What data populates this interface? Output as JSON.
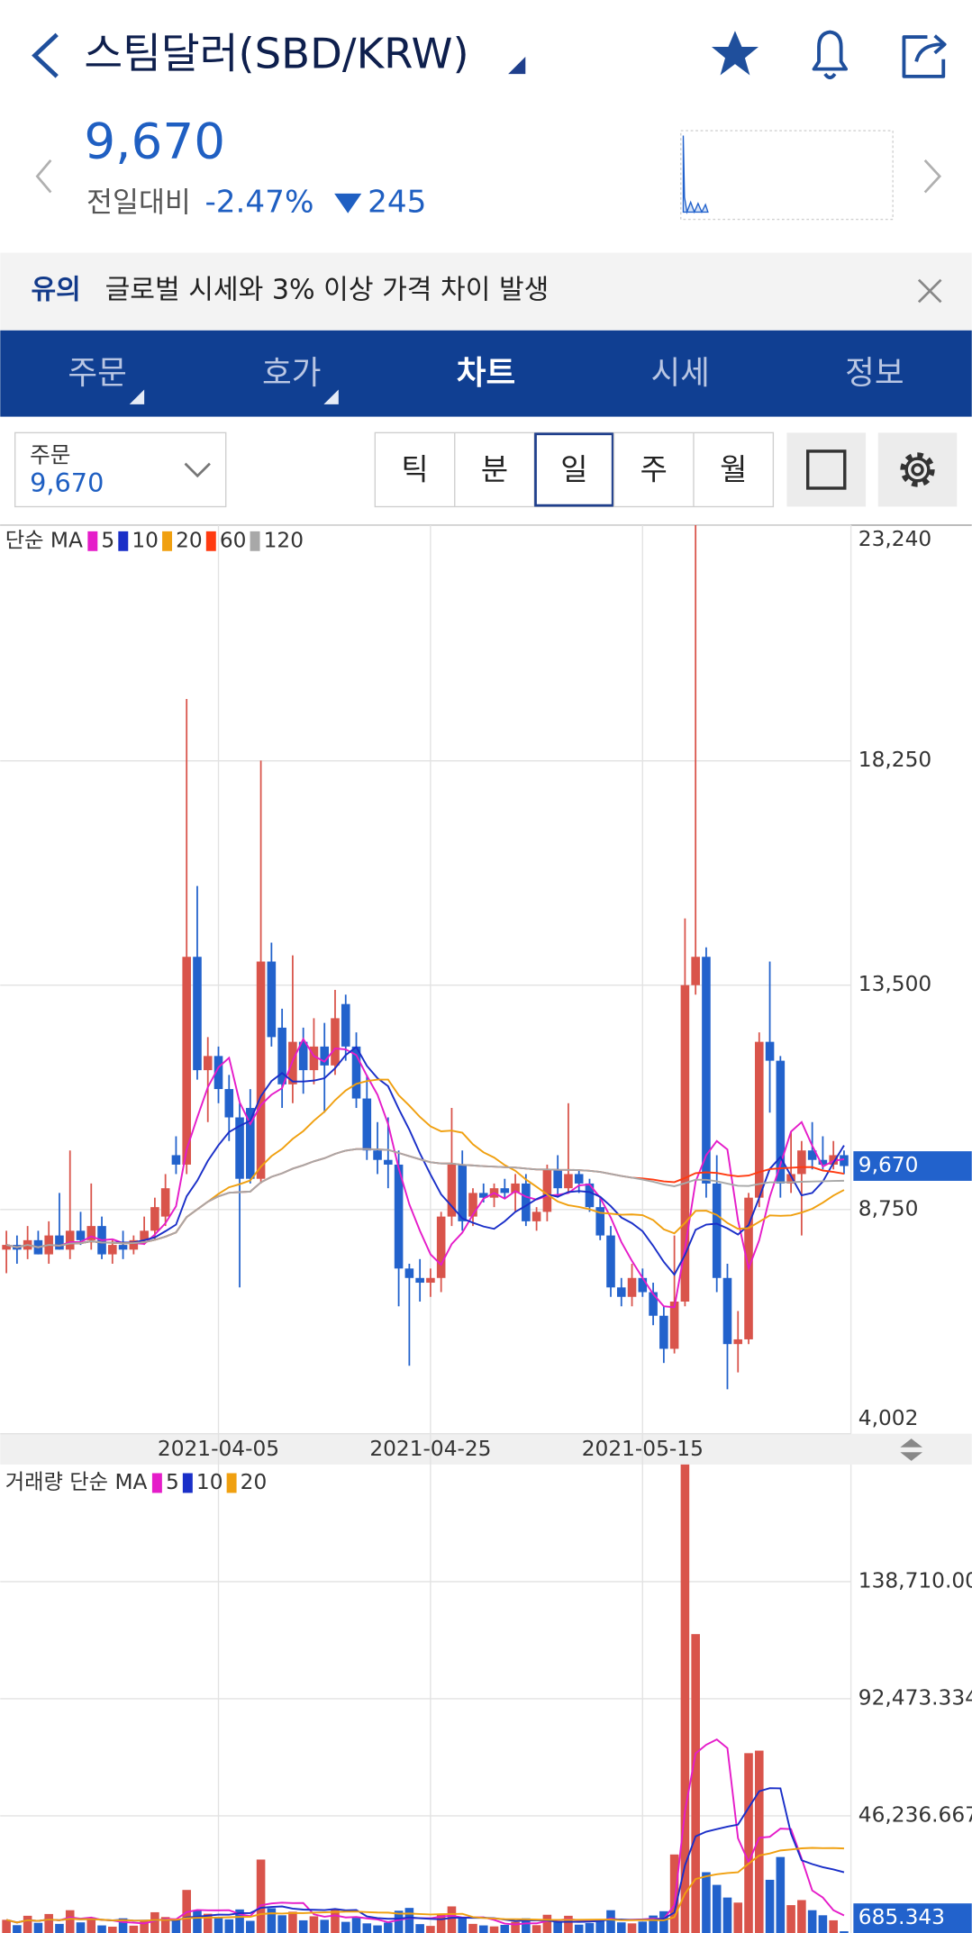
{
  "header": {
    "title": "스팀달러(SBD/KRW)"
  },
  "price": {
    "current": "9,670",
    "change_label": "전일대비",
    "change_pct": "-2.47%",
    "change_amount": "245"
  },
  "notice": {
    "tag": "유의",
    "text": "글로벌 시세와 3% 이상 가격 차이 발생"
  },
  "tabs": [
    "주문",
    "호가",
    "차트",
    "시세",
    "정보"
  ],
  "active_tab": 2,
  "controls": {
    "order_label": "주문",
    "order_price": "9,670",
    "periods": [
      "틱",
      "분",
      "일",
      "주",
      "월"
    ],
    "active_period": 2
  },
  "chart_data": [
    {
      "type": "candlestick",
      "legend_title": "단순 MA",
      "moving_averages": [
        {
          "name": "5",
          "color": "#e51cc9"
        },
        {
          "name": "10",
          "color": "#1a2fc8"
        },
        {
          "name": "20",
          "color": "#f0a010"
        },
        {
          "name": "60",
          "color": "#ff3a10"
        },
        {
          "name": "120",
          "color": "#a8a8a8"
        }
      ],
      "categories": [
        null,
        null,
        null,
        null,
        null,
        null,
        null,
        null,
        null,
        null,
        null,
        null,
        null,
        null,
        null,
        null,
        null,
        null,
        null,
        null,
        "2021-04-05",
        null,
        null,
        null,
        null,
        null,
        null,
        null,
        null,
        null,
        null,
        null,
        null,
        null,
        null,
        null,
        null,
        null,
        null,
        null,
        "2021-04-25",
        null,
        null,
        null,
        null,
        null,
        null,
        null,
        null,
        null,
        null,
        null,
        null,
        null,
        null,
        null,
        null,
        null,
        null,
        null,
        "2021-05-15",
        null,
        null,
        null,
        null,
        null,
        null,
        null,
        null,
        null,
        null,
        null,
        null,
        null,
        null,
        null,
        null,
        null,
        null,
        null
      ],
      "candles": [
        [
          7900,
          8300,
          7400,
          8000
        ],
        [
          8000,
          8200,
          7600,
          7900
        ],
        [
          7900,
          8400,
          7700,
          8100
        ],
        [
          8100,
          8300,
          7800,
          7800
        ],
        [
          7800,
          8500,
          7600,
          8200
        ],
        [
          8200,
          9100,
          7900,
          7900
        ],
        [
          7900,
          10000,
          7700,
          8300
        ],
        [
          8300,
          8700,
          8000,
          8100
        ],
        [
          8100,
          9300,
          7900,
          8400
        ],
        [
          8400,
          8600,
          7700,
          7800
        ],
        [
          7800,
          8100,
          7600,
          8000
        ],
        [
          8000,
          8300,
          7700,
          7900
        ],
        [
          7900,
          8200,
          7800,
          8100
        ],
        [
          8100,
          8600,
          8000,
          8300
        ],
        [
          8300,
          9000,
          8100,
          8800
        ],
        [
          8600,
          9500,
          8400,
          9200
        ],
        [
          9900,
          10300,
          9500,
          9700
        ],
        [
          9700,
          19560,
          9500,
          14100
        ],
        [
          14100,
          15600,
          11500,
          11700
        ],
        [
          11700,
          12400,
          10600,
          12000
        ],
        [
          12000,
          12200,
          11000,
          11300
        ],
        [
          11300,
          11600,
          10200,
          10700
        ],
        [
          10700,
          11000,
          7100,
          9400
        ],
        [
          10900,
          11300,
          9300,
          9400
        ],
        [
          9400,
          18255,
          9300,
          14000
        ],
        [
          14000,
          14400,
          12200,
          12400
        ],
        [
          12600,
          13000,
          10900,
          11400
        ],
        [
          11400,
          14131,
          11000,
          12300
        ],
        [
          12300,
          12600,
          11200,
          11700
        ],
        [
          11700,
          12800,
          11400,
          12200
        ],
        [
          12200,
          12700,
          10800,
          11800
        ],
        [
          11800,
          13400,
          11600,
          12800
        ],
        [
          13100,
          13300,
          11900,
          12200
        ],
        [
          12200,
          12500,
          10900,
          11100
        ],
        [
          11100,
          11600,
          9800,
          10000
        ],
        [
          10000,
          10600,
          9500,
          9800
        ],
        [
          9800,
          10700,
          9200,
          9700
        ],
        [
          9700,
          10000,
          6700,
          7500
        ],
        [
          7500,
          7600,
          5440,
          7300
        ],
        [
          7300,
          7700,
          6800,
          7200
        ],
        [
          7200,
          7500,
          6900,
          7300
        ],
        [
          7300,
          8700,
          7000,
          8600
        ],
        [
          8600,
          10900,
          8400,
          9700
        ],
        [
          9700,
          10000,
          8300,
          8500
        ],
        [
          8600,
          9200,
          8400,
          9100
        ],
        [
          9100,
          9300,
          8900,
          9000
        ],
        [
          9000,
          9300,
          8800,
          9200
        ],
        [
          9200,
          9400,
          9000,
          9100
        ],
        [
          9100,
          9500,
          8700,
          9300
        ],
        [
          9300,
          9500,
          8400,
          8500
        ],
        [
          8500,
          8800,
          8300,
          8700
        ],
        [
          8700,
          9700,
          8500,
          9600
        ],
        [
          9600,
          9900,
          9000,
          9200
        ],
        [
          9200,
          11000,
          9100,
          9500
        ],
        [
          9500,
          9600,
          9100,
          9300
        ],
        [
          9300,
          9400,
          8700,
          8800
        ],
        [
          8800,
          9000,
          8100,
          8200
        ],
        [
          8200,
          8400,
          6900,
          7100
        ],
        [
          7100,
          7300,
          6700,
          6900
        ],
        [
          6900,
          7600,
          6700,
          7300
        ],
        [
          7300,
          7500,
          6900,
          7000
        ],
        [
          7000,
          7200,
          6300,
          6500
        ],
        [
          6500,
          6700,
          5500,
          5800
        ],
        [
          5800,
          8200,
          5700,
          6800
        ],
        [
          6800,
          14914,
          6700,
          13500
        ],
        [
          13500,
          23240,
          13300,
          14100
        ],
        [
          14100,
          14300,
          9000,
          9300
        ],
        [
          9300,
          9900,
          7000,
          7300
        ],
        [
          7300,
          7600,
          4944,
          5900
        ],
        [
          5900,
          6600,
          5300,
          6000
        ],
        [
          6000,
          9100,
          5900,
          9000
        ],
        [
          9000,
          12500,
          8800,
          12300
        ],
        [
          12300,
          14000,
          10800,
          11900
        ],
        [
          11900,
          12000,
          9000,
          9300
        ],
        [
          9300,
          10400,
          9100,
          9500
        ],
        [
          9500,
          10200,
          8200,
          10000
        ],
        [
          10000,
          10600,
          9600,
          9800
        ],
        [
          9800,
          10300,
          9600,
          9700
        ],
        [
          9700,
          10200,
          9600,
          9900
        ],
        [
          9900,
          10000,
          9500,
          9670
        ]
      ],
      "up_color": "#d9544b",
      "down_color": "#2262cc",
      "ylim": [
        4002,
        23240
      ],
      "yticks": [
        {
          "value": 4002,
          "label": "4,002"
        },
        {
          "value": 8750,
          "label": "8,750"
        },
        {
          "value": 13500,
          "label": "13,500"
        },
        {
          "value": 18250,
          "label": "18,250"
        },
        {
          "value": 23240,
          "label": "23,240"
        }
      ],
      "last_price": {
        "value": 9670,
        "label": "9,670"
      },
      "grid": true
    },
    {
      "type": "bar",
      "legend_title": "거래량 단순 MA",
      "moving_averages": [
        {
          "name": "5",
          "color": "#e51cc9"
        },
        {
          "name": "10",
          "color": "#1a2fc8"
        },
        {
          "name": "20",
          "color": "#f0a010"
        }
      ],
      "values": [
        5200,
        3100,
        6800,
        4000,
        7500,
        3600,
        9000,
        4200,
        6100,
        3000,
        2500,
        5800,
        2900,
        4600,
        8200,
        6300,
        5100,
        17000,
        8800,
        7600,
        6200,
        5400,
        9300,
        4800,
        29000,
        9800,
        7000,
        8400,
        5000,
        6600,
        5200,
        9500,
        4400,
        6000,
        3800,
        3000,
        4100,
        8800,
        9900,
        3500,
        2800,
        7600,
        10500,
        6200,
        3600,
        3000,
        2600,
        3200,
        4400,
        5800,
        3100,
        7200,
        4600,
        6800,
        3300,
        3900,
        5500,
        9000,
        4200,
        3800,
        4500,
        6900,
        8600,
        31000,
        190000,
        118000,
        24000,
        19000,
        14000,
        12000,
        71000,
        72000,
        21000,
        30000,
        11000,
        13000,
        9000,
        7000,
        5000,
        685.343
      ],
      "ylim": [
        0,
        184947
      ],
      "yticks": [
        {
          "value": 46236.667,
          "label": "46,236.667"
        },
        {
          "value": 92473.334,
          "label": "92,473.334"
        },
        {
          "value": 138710,
          "label": "138,710.000"
        }
      ],
      "grid": true
    }
  ]
}
